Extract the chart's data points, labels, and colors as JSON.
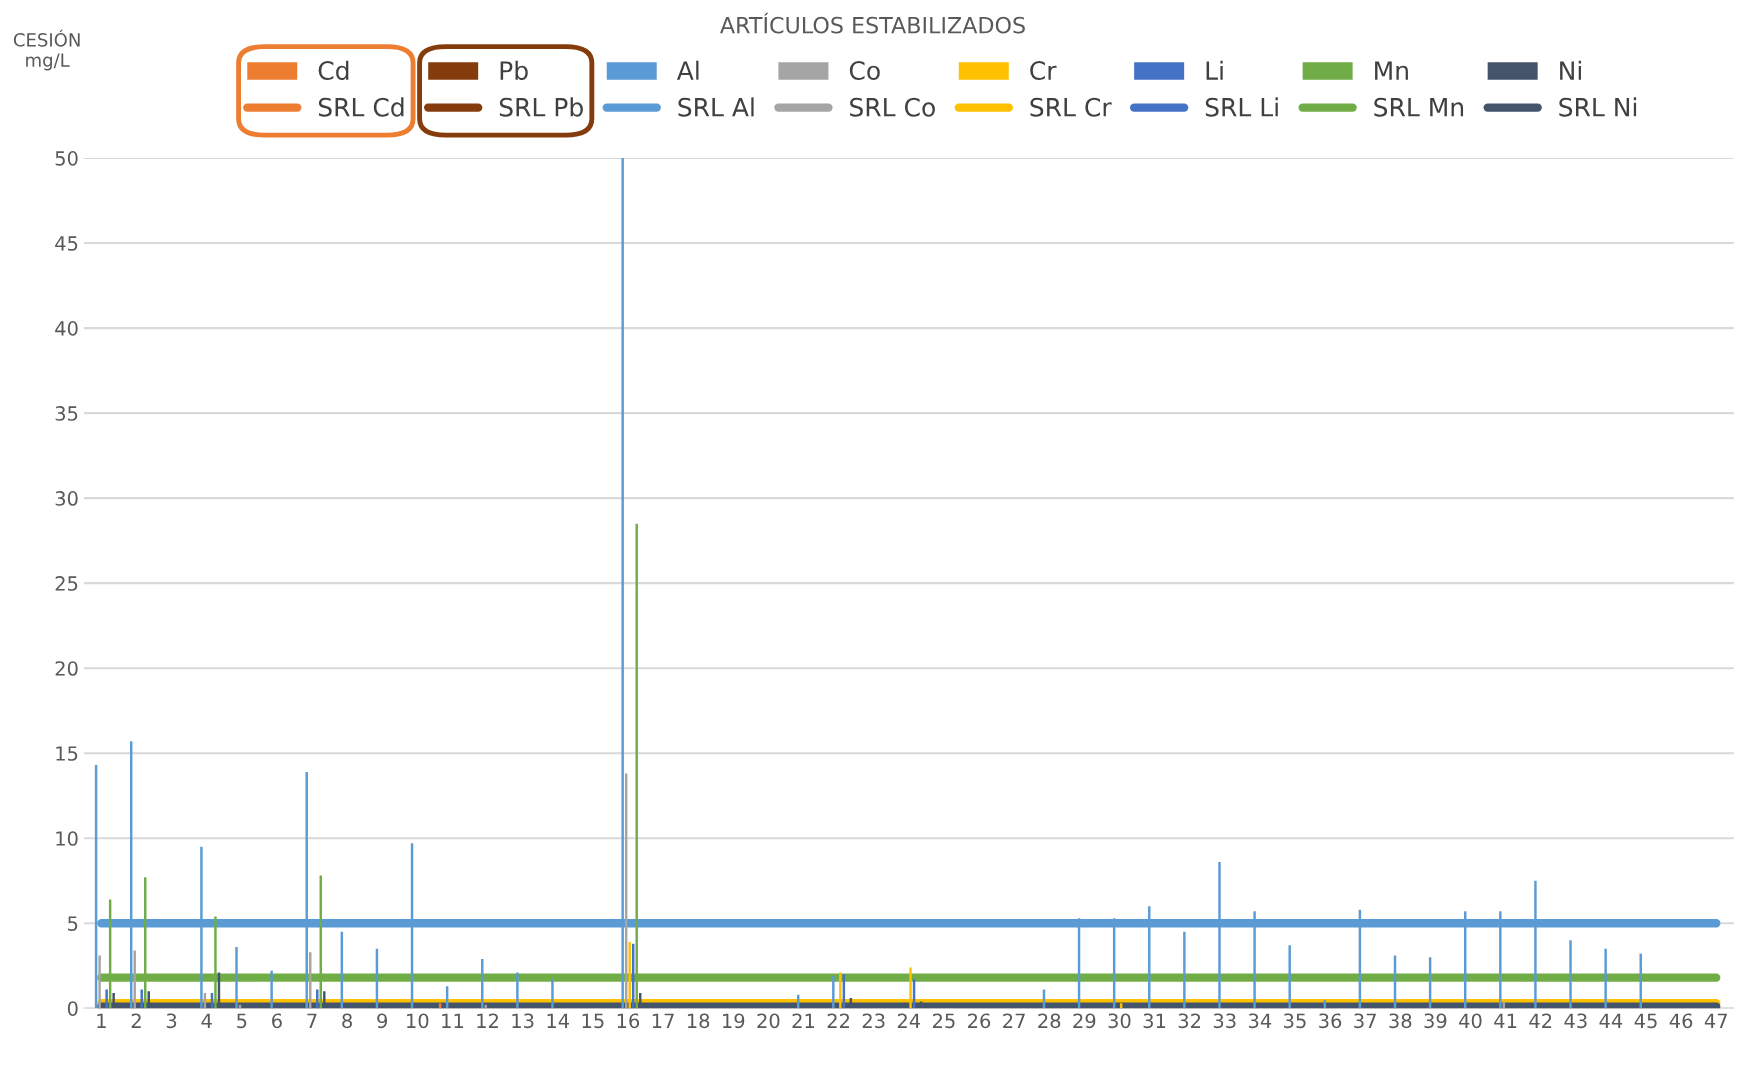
{
  "chart_data": {
    "type": "bar",
    "title": "ARTÍCULOS ESTABILIZADOS",
    "ylabel": "CESIÓN\nmg/L",
    "categories": [
      "1",
      "2",
      "3",
      "4",
      "5",
      "6",
      "7",
      "8",
      "9",
      "10",
      "11",
      "12",
      "13",
      "14",
      "15",
      "16",
      "17",
      "18",
      "19",
      "20",
      "21",
      "22",
      "23",
      "24",
      "25",
      "26",
      "27",
      "28",
      "29",
      "30",
      "31",
      "32",
      "33",
      "34",
      "35",
      "36",
      "37",
      "38",
      "39",
      "40",
      "41",
      "42",
      "43",
      "44",
      "45",
      "46",
      "47"
    ],
    "series": [
      {
        "name": "Cd",
        "color": "#ed7d31",
        "values": [
          null,
          null,
          null,
          null,
          null,
          null,
          null,
          null,
          null,
          null,
          0.3,
          null,
          null,
          null,
          null,
          null,
          null,
          null,
          null,
          null,
          null,
          null,
          null,
          null,
          null,
          null,
          null,
          null,
          null,
          null,
          null,
          null,
          null,
          null,
          null,
          null,
          null,
          null,
          null,
          null,
          null,
          null,
          null,
          null,
          null,
          null,
          null
        ]
      },
      {
        "name": "Pb",
        "color": "#843c0c",
        "values": [
          null,
          null,
          null,
          null,
          null,
          null,
          null,
          null,
          null,
          null,
          null,
          null,
          null,
          null,
          null,
          null,
          null,
          null,
          null,
          null,
          null,
          null,
          null,
          null,
          null,
          null,
          null,
          null,
          null,
          null,
          null,
          null,
          null,
          null,
          null,
          null,
          null,
          null,
          null,
          null,
          null,
          null,
          null,
          null,
          null,
          null,
          null
        ]
      },
      {
        "name": "Al",
        "color": "#5b9bd5",
        "values": [
          14.3,
          15.7,
          null,
          9.5,
          3.6,
          2.2,
          13.9,
          4.5,
          3.5,
          9.7,
          1.3,
          2.9,
          2.1,
          1.7,
          null,
          50,
          null,
          null,
          null,
          null,
          0.8,
          1.9,
          null,
          null,
          null,
          null,
          null,
          1.1,
          5.3,
          5.3,
          6.0,
          4.5,
          8.6,
          5.7,
          3.7,
          0.5,
          5.8,
          3.1,
          3.0,
          5.7,
          5.7,
          7.5,
          4.0,
          3.5,
          3.2,
          null,
          null
        ]
      },
      {
        "name": "Co",
        "color": "#a5a5a5",
        "values": [
          3.1,
          3.4,
          null,
          0.9,
          0.2,
          null,
          3.3,
          null,
          null,
          null,
          null,
          0.2,
          null,
          null,
          null,
          13.8,
          null,
          null,
          null,
          null,
          null,
          null,
          null,
          null,
          null,
          null,
          null,
          null,
          null,
          null,
          null,
          null,
          null,
          null,
          null,
          null,
          null,
          null,
          null,
          null,
          0.4,
          null,
          null,
          null,
          null,
          null,
          null
        ]
      },
      {
        "name": "Cr",
        "color": "#ffc000",
        "values": [
          null,
          null,
          null,
          null,
          null,
          null,
          null,
          null,
          null,
          null,
          null,
          null,
          null,
          null,
          null,
          3.9,
          null,
          null,
          null,
          null,
          null,
          2.1,
          null,
          2.4,
          null,
          null,
          null,
          null,
          null,
          0.3,
          null,
          null,
          null,
          null,
          null,
          null,
          null,
          null,
          null,
          null,
          null,
          null,
          null,
          null,
          null,
          null,
          null
        ]
      },
      {
        "name": "Li",
        "color": "#4472c4",
        "values": [
          1.1,
          1.1,
          null,
          0.9,
          null,
          null,
          1.1,
          null,
          null,
          null,
          null,
          null,
          null,
          null,
          null,
          3.8,
          null,
          null,
          null,
          null,
          null,
          2.0,
          null,
          1.7,
          null,
          null,
          null,
          null,
          null,
          null,
          null,
          null,
          null,
          null,
          null,
          null,
          null,
          null,
          null,
          null,
          null,
          null,
          null,
          null,
          null,
          null,
          null
        ]
      },
      {
        "name": "Mn",
        "color": "#70ad47",
        "values": [
          6.4,
          7.7,
          null,
          5.4,
          null,
          null,
          7.8,
          null,
          null,
          null,
          null,
          null,
          null,
          null,
          null,
          28.5,
          null,
          null,
          null,
          null,
          null,
          null,
          null,
          null,
          null,
          null,
          null,
          null,
          null,
          null,
          null,
          null,
          null,
          null,
          null,
          null,
          null,
          null,
          null,
          null,
          null,
          null,
          null,
          null,
          null,
          null,
          null
        ]
      },
      {
        "name": "Ni",
        "color": "#44546a",
        "values": [
          0.9,
          1.0,
          null,
          2.1,
          null,
          null,
          1.0,
          null,
          null,
          null,
          null,
          null,
          null,
          null,
          null,
          0.9,
          null,
          null,
          null,
          null,
          null,
          0.6,
          null,
          0.4,
          null,
          null,
          null,
          null,
          null,
          null,
          null,
          null,
          null,
          null,
          null,
          null,
          null,
          null,
          null,
          null,
          null,
          null,
          null,
          null,
          null,
          null,
          null
        ]
      },
      {
        "name": "SRL Cd",
        "type": "line",
        "color": "#ed7d31",
        "values": [
          null,
          null,
          null,
          null,
          null,
          null,
          null,
          null,
          null,
          null,
          null,
          null,
          null,
          null,
          null,
          null,
          null,
          null,
          null,
          null,
          null,
          null,
          null,
          null,
          null,
          null,
          null,
          null,
          null,
          null,
          null,
          null,
          null,
          null,
          null,
          null,
          null,
          null,
          null,
          null,
          null,
          null,
          null,
          null,
          null,
          null,
          null
        ]
      },
      {
        "name": "SRL Pb",
        "type": "line",
        "color": "#843c0c",
        "values": [
          null,
          null,
          null,
          null,
          null,
          null,
          null,
          null,
          null,
          null,
          null,
          null,
          null,
          null,
          null,
          null,
          null,
          null,
          null,
          null,
          null,
          null,
          null,
          null,
          null,
          null,
          null,
          null,
          null,
          null,
          null,
          null,
          null,
          null,
          null,
          null,
          null,
          null,
          null,
          null,
          null,
          null,
          null,
          null,
          null,
          null,
          null
        ]
      },
      {
        "name": "SRL Al",
        "type": "line",
        "color": "#5b9bd5",
        "values": [
          5,
          5,
          5,
          5,
          5,
          5,
          5,
          5,
          5,
          5,
          5,
          5,
          5,
          5,
          5,
          5,
          5,
          5,
          5,
          5,
          5,
          5,
          5,
          5,
          5,
          5,
          5,
          5,
          5,
          5,
          5,
          5,
          5,
          5,
          5,
          5,
          5,
          5,
          5,
          5,
          5,
          5,
          5,
          5,
          5,
          5,
          5
        ]
      },
      {
        "name": "SRL Co",
        "type": "line",
        "color": "#a5a5a5",
        "values": [
          null,
          null,
          null,
          null,
          null,
          null,
          null,
          null,
          null,
          null,
          null,
          null,
          null,
          null,
          null,
          null,
          null,
          null,
          null,
          null,
          null,
          null,
          null,
          null,
          null,
          null,
          null,
          null,
          null,
          null,
          null,
          null,
          null,
          null,
          null,
          null,
          null,
          null,
          null,
          null,
          null,
          null,
          null,
          null,
          null,
          null,
          null
        ]
      },
      {
        "name": "SRL Cr",
        "type": "line",
        "color": "#ffc000",
        "values": [
          0.3,
          0.3,
          0.3,
          0.3,
          0.3,
          0.3,
          0.3,
          0.3,
          0.3,
          0.3,
          0.3,
          0.3,
          0.3,
          0.3,
          0.3,
          0.3,
          0.3,
          0.3,
          0.3,
          0.3,
          0.3,
          0.3,
          0.3,
          0.3,
          0.3,
          0.3,
          0.3,
          0.3,
          0.3,
          0.3,
          0.3,
          0.3,
          0.3,
          0.3,
          0.3,
          0.3,
          0.3,
          0.3,
          0.3,
          0.3,
          0.3,
          0.3,
          0.3,
          0.3,
          0.3,
          0.3,
          0.3
        ]
      },
      {
        "name": "SRL Li",
        "type": "line",
        "color": "#4472c4",
        "values": [
          null,
          null,
          null,
          null,
          null,
          null,
          null,
          null,
          null,
          null,
          null,
          null,
          null,
          null,
          null,
          null,
          null,
          null,
          null,
          null,
          null,
          null,
          null,
          null,
          null,
          null,
          null,
          null,
          null,
          null,
          null,
          null,
          null,
          null,
          null,
          null,
          null,
          null,
          null,
          null,
          null,
          null,
          null,
          null,
          null,
          null,
          null
        ]
      },
      {
        "name": "SRL Mn",
        "type": "line",
        "color": "#70ad47",
        "values": [
          1.8,
          1.8,
          1.8,
          1.8,
          1.8,
          1.8,
          1.8,
          1.8,
          1.8,
          1.8,
          1.8,
          1.8,
          1.8,
          1.8,
          1.8,
          1.8,
          1.8,
          1.8,
          1.8,
          1.8,
          1.8,
          1.8,
          1.8,
          1.8,
          1.8,
          1.8,
          1.8,
          1.8,
          1.8,
          1.8,
          1.8,
          1.8,
          1.8,
          1.8,
          1.8,
          1.8,
          1.8,
          1.8,
          1.8,
          1.8,
          1.8,
          1.8,
          1.8,
          1.8,
          1.8,
          1.8,
          1.8
        ]
      },
      {
        "name": "SRL Ni",
        "type": "line",
        "color": "#44546a",
        "values": [
          0.1,
          0.1,
          0.1,
          0.1,
          0.1,
          0.1,
          0.1,
          0.1,
          0.1,
          0.1,
          0.1,
          0.1,
          0.1,
          0.1,
          0.1,
          0.1,
          0.1,
          0.1,
          0.1,
          0.1,
          0.1,
          0.1,
          0.1,
          0.1,
          0.1,
          0.1,
          0.1,
          0.1,
          0.1,
          0.1,
          0.1,
          0.1,
          0.1,
          0.1,
          0.1,
          0.1,
          0.1,
          0.1,
          0.1,
          0.1,
          0.1,
          0.1,
          0.1,
          0.1,
          0.1,
          0.1,
          0.1
        ]
      }
    ],
    "ylim": [
      0,
      50
    ],
    "yticks": [
      0,
      5,
      10,
      15,
      20,
      25,
      30,
      35,
      40,
      45,
      50
    ],
    "grid": "y",
    "legend": "top"
  }
}
